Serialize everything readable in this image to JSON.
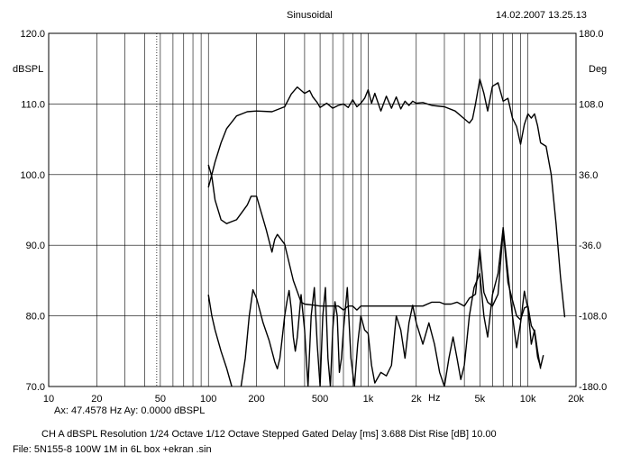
{
  "header": {
    "title": "Sinusoidal",
    "timestamp": "14.02.2007 13.25.13"
  },
  "footer": {
    "cursor": "Ax: 47.4578 Hz  Ay: 0.0000 dBSPL",
    "settings": "CH A   dBSPL   Resolution 1/24 Octave   1/12 Octave   Stepped   Gated   Delay [ms] 3.688   Dist Rise [dB] 10.00",
    "file": "File: 5N155-8 100W 1M in 6L box +ekran .sin"
  },
  "chart_data": {
    "type": "line",
    "title": "Sinusoidal",
    "xlabel": "Hz",
    "ylabel": "dBSPL",
    "y2label": "Deg",
    "x_scale": "log",
    "xlim": [
      10,
      20000
    ],
    "ylim": [
      70,
      120
    ],
    "y2lim": [
      -180,
      180
    ],
    "grid": true,
    "x_ticks": [
      10,
      20,
      50,
      100,
      200,
      500,
      1000,
      2000,
      5000,
      10000,
      20000
    ],
    "x_tick_labels": [
      "10",
      "20",
      "50",
      "100",
      "200",
      "500",
      "1k",
      "2k",
      "5k",
      "10k",
      "20k"
    ],
    "y_tick_labels": [
      "120.0",
      "110.0",
      "100.0",
      "90.0",
      "80.0",
      "70.0"
    ],
    "y2_tick_labels": [
      "180.0",
      "108.0",
      "36.0",
      "-36.0",
      "-108.0",
      "-180.0"
    ],
    "cursor_x": 47.4578,
    "series": [
      {
        "axis": "left",
        "x": [
          100,
          105,
          110,
          120,
          130,
          150,
          175,
          200,
          250,
          300,
          330,
          360,
          400,
          430,
          450,
          480,
          500,
          550,
          600,
          650,
          700,
          750,
          800,
          850,
          900,
          950,
          1000,
          1050,
          1100,
          1200,
          1300,
          1400,
          1500,
          1600,
          1700,
          1800,
          1900,
          2000,
          2200,
          2500,
          3000,
          3500,
          4000,
          4300,
          4500,
          4700,
          5000,
          5300,
          5600,
          6000,
          6500,
          7000,
          7500,
          8000,
          8500,
          9000,
          9500,
          10000,
          10500,
          11000,
          11500,
          12000,
          13000,
          14000,
          15000,
          16000,
          17000
        ],
        "values": [
          98.2,
          100.0,
          101.8,
          104.5,
          106.5,
          108.3,
          108.9,
          109.0,
          108.9,
          109.6,
          111.4,
          112.4,
          111.5,
          111.9,
          111.0,
          110.2,
          109.5,
          110.1,
          109.4,
          109.8,
          110.0,
          109.5,
          110.6,
          109.6,
          110.1,
          110.8,
          112.0,
          110.1,
          111.5,
          109.0,
          111.1,
          109.4,
          111.0,
          109.3,
          110.4,
          109.8,
          110.4,
          110.1,
          110.2,
          109.8,
          109.6,
          109.0,
          107.9,
          107.3,
          107.9,
          110.0,
          113.5,
          111.5,
          109.0,
          112.5,
          113.0,
          110.4,
          110.8,
          108.0,
          106.8,
          104.3,
          107.1,
          108.6,
          108.0,
          108.6,
          106.9,
          104.5,
          104.0,
          100.0,
          93.0,
          85.5,
          79.8
        ]
      },
      {
        "axis": "right",
        "x": [
          100,
          105,
          110,
          120,
          130,
          150,
          175,
          185,
          200,
          230,
          250,
          260,
          270,
          300,
          340,
          380,
          400,
          450,
          500,
          550,
          600,
          650,
          700,
          750,
          800,
          850,
          900,
          950,
          1000,
          1050,
          1100,
          1200,
          1300,
          1400,
          1500,
          1600,
          1700,
          1800,
          1900,
          2000,
          2200,
          2500,
          2800,
          3000,
          3300,
          3600,
          4000,
          4300,
          4500,
          4700,
          5000,
          5300,
          5600,
          6000,
          6500,
          7000,
          7500,
          8000,
          8500,
          9000,
          9500,
          10000,
          10500,
          11000,
          11500,
          12000,
          12500
        ],
        "values": [
          46,
          34,
          10,
          -10,
          -14,
          -10,
          5,
          14,
          14,
          -20,
          -43,
          -30,
          -25,
          -35,
          -72,
          -94,
          -96,
          -97,
          -98,
          -98,
          -98,
          -98,
          -102,
          -98,
          -98,
          -102,
          -98,
          -98,
          -98,
          -98,
          -98,
          -98,
          -98,
          -98,
          -98,
          -98,
          -98,
          -98,
          -98,
          -98,
          -98,
          -94,
          -94,
          -96,
          -96,
          -94,
          -98,
          -90,
          -88,
          -86,
          -40,
          -84,
          -94,
          -98,
          -86,
          -20,
          -74,
          -92,
          -108,
          -112,
          -100,
          -98,
          -118,
          -124,
          -150,
          -160,
          -148
        ]
      },
      {
        "axis": "left",
        "x": [
          100,
          105,
          110,
          120,
          130,
          140,
          150,
          160,
          170,
          180,
          190,
          200,
          220,
          240,
          260,
          270,
          280,
          290,
          300,
          310,
          320,
          330,
          340,
          350,
          360,
          370,
          380,
          400,
          420,
          440,
          460,
          480,
          500,
          520,
          540,
          560,
          580,
          600,
          620,
          640,
          660,
          680,
          700,
          740,
          780,
          820,
          860,
          900,
          950,
          1000,
          1050,
          1100,
          1200,
          1300,
          1400,
          1500,
          1600,
          1700,
          1800,
          1900,
          2000,
          2200,
          2400,
          2600,
          2800,
          3000,
          3200,
          3400,
          3600,
          3800,
          4000,
          4300,
          4600,
          5000,
          5300,
          5600,
          6000,
          6500,
          7000,
          7500,
          8000,
          8500,
          9000,
          9500,
          10000,
          10500,
          11000,
          11500,
          12000
        ],
        "values": [
          83.0,
          80.0,
          78.0,
          75.0,
          72.6,
          70.0,
          68.0,
          70.0,
          74.0,
          80.0,
          83.7,
          82.5,
          79.0,
          76.5,
          73.5,
          72.5,
          74.0,
          77.0,
          80.0,
          82.0,
          83.6,
          81.0,
          77.0,
          75.0,
          77.0,
          80.0,
          83.0,
          78.0,
          70.0,
          80.0,
          84.0,
          76.0,
          70.0,
          80.0,
          84.0,
          74.0,
          70.0,
          78.0,
          82.0,
          80.0,
          72.0,
          74.0,
          78.0,
          84.0,
          74.0,
          70.0,
          76.0,
          80.0,
          78.0,
          77.5,
          73.0,
          70.5,
          72.0,
          71.5,
          73.0,
          80.0,
          78.0,
          74.0,
          79.0,
          81.5,
          79.0,
          76.0,
          79.0,
          76.0,
          72.0,
          70.0,
          74.0,
          77.0,
          74.0,
          71.0,
          73.0,
          80.0,
          84.0,
          86.0,
          80.0,
          77.0,
          83.0,
          86.0,
          92.5,
          86.0,
          80.0,
          75.5,
          79.0,
          83.5,
          81.0,
          76.0,
          78.0,
          75.0,
          72.5
        ]
      }
    ]
  }
}
